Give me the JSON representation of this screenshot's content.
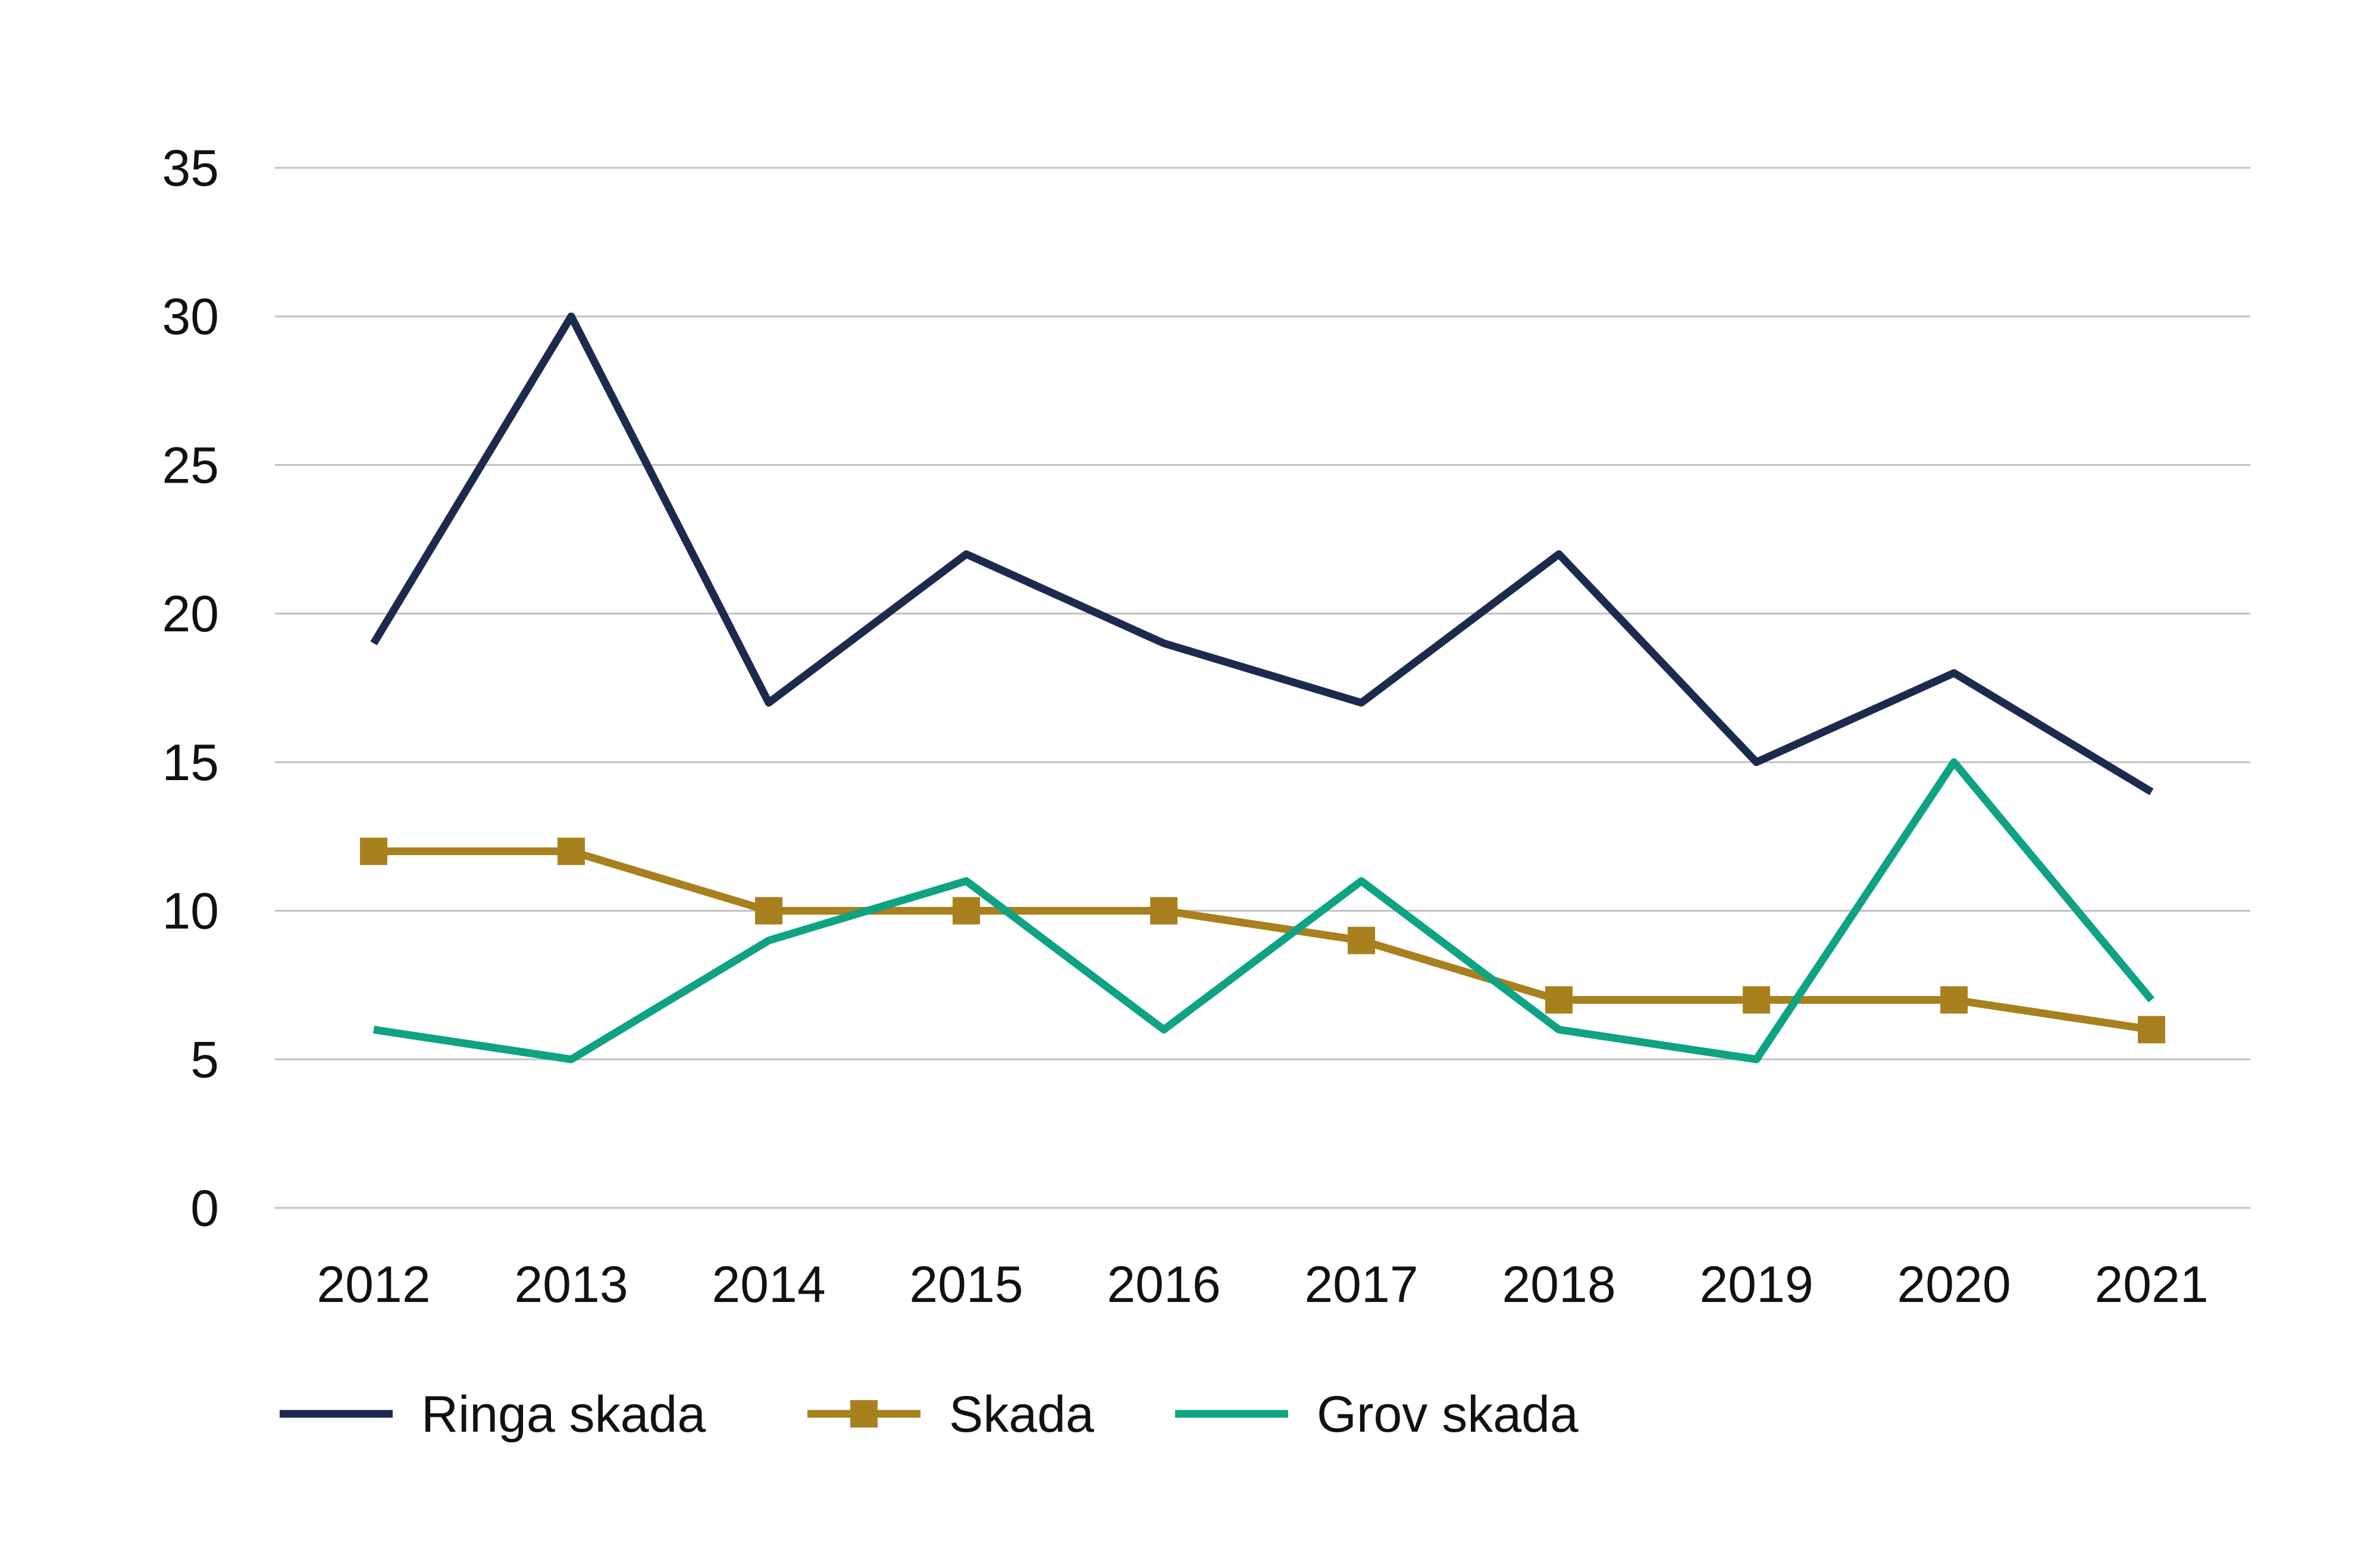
{
  "chart_data": {
    "type": "line",
    "title": "",
    "xlabel": "",
    "ylabel": "",
    "categories": [
      "2012",
      "2013",
      "2014",
      "2015",
      "2016",
      "2017",
      "2018",
      "2019",
      "2020",
      "2021"
    ],
    "ylim": [
      0,
      35
    ],
    "yticks": [
      "0",
      "5",
      "10",
      "15",
      "20",
      "25",
      "30",
      "35"
    ],
    "grid": true,
    "legend_position": "bottom-left",
    "series": [
      {
        "name": "Ringa skada",
        "color": "#1c2b4d",
        "marker": "none",
        "values": [
          19,
          30,
          17,
          22,
          19,
          17,
          22,
          15,
          18,
          14
        ]
      },
      {
        "name": "Skada",
        "color": "#a8801e",
        "marker": "square",
        "values": [
          12,
          12,
          10,
          10,
          10,
          9,
          7,
          7,
          7,
          6
        ]
      },
      {
        "name": "Grov skada",
        "color": "#0ea383",
        "marker": "none",
        "values": [
          6,
          5,
          9,
          11,
          6,
          11,
          6,
          5,
          15,
          7
        ]
      }
    ]
  }
}
